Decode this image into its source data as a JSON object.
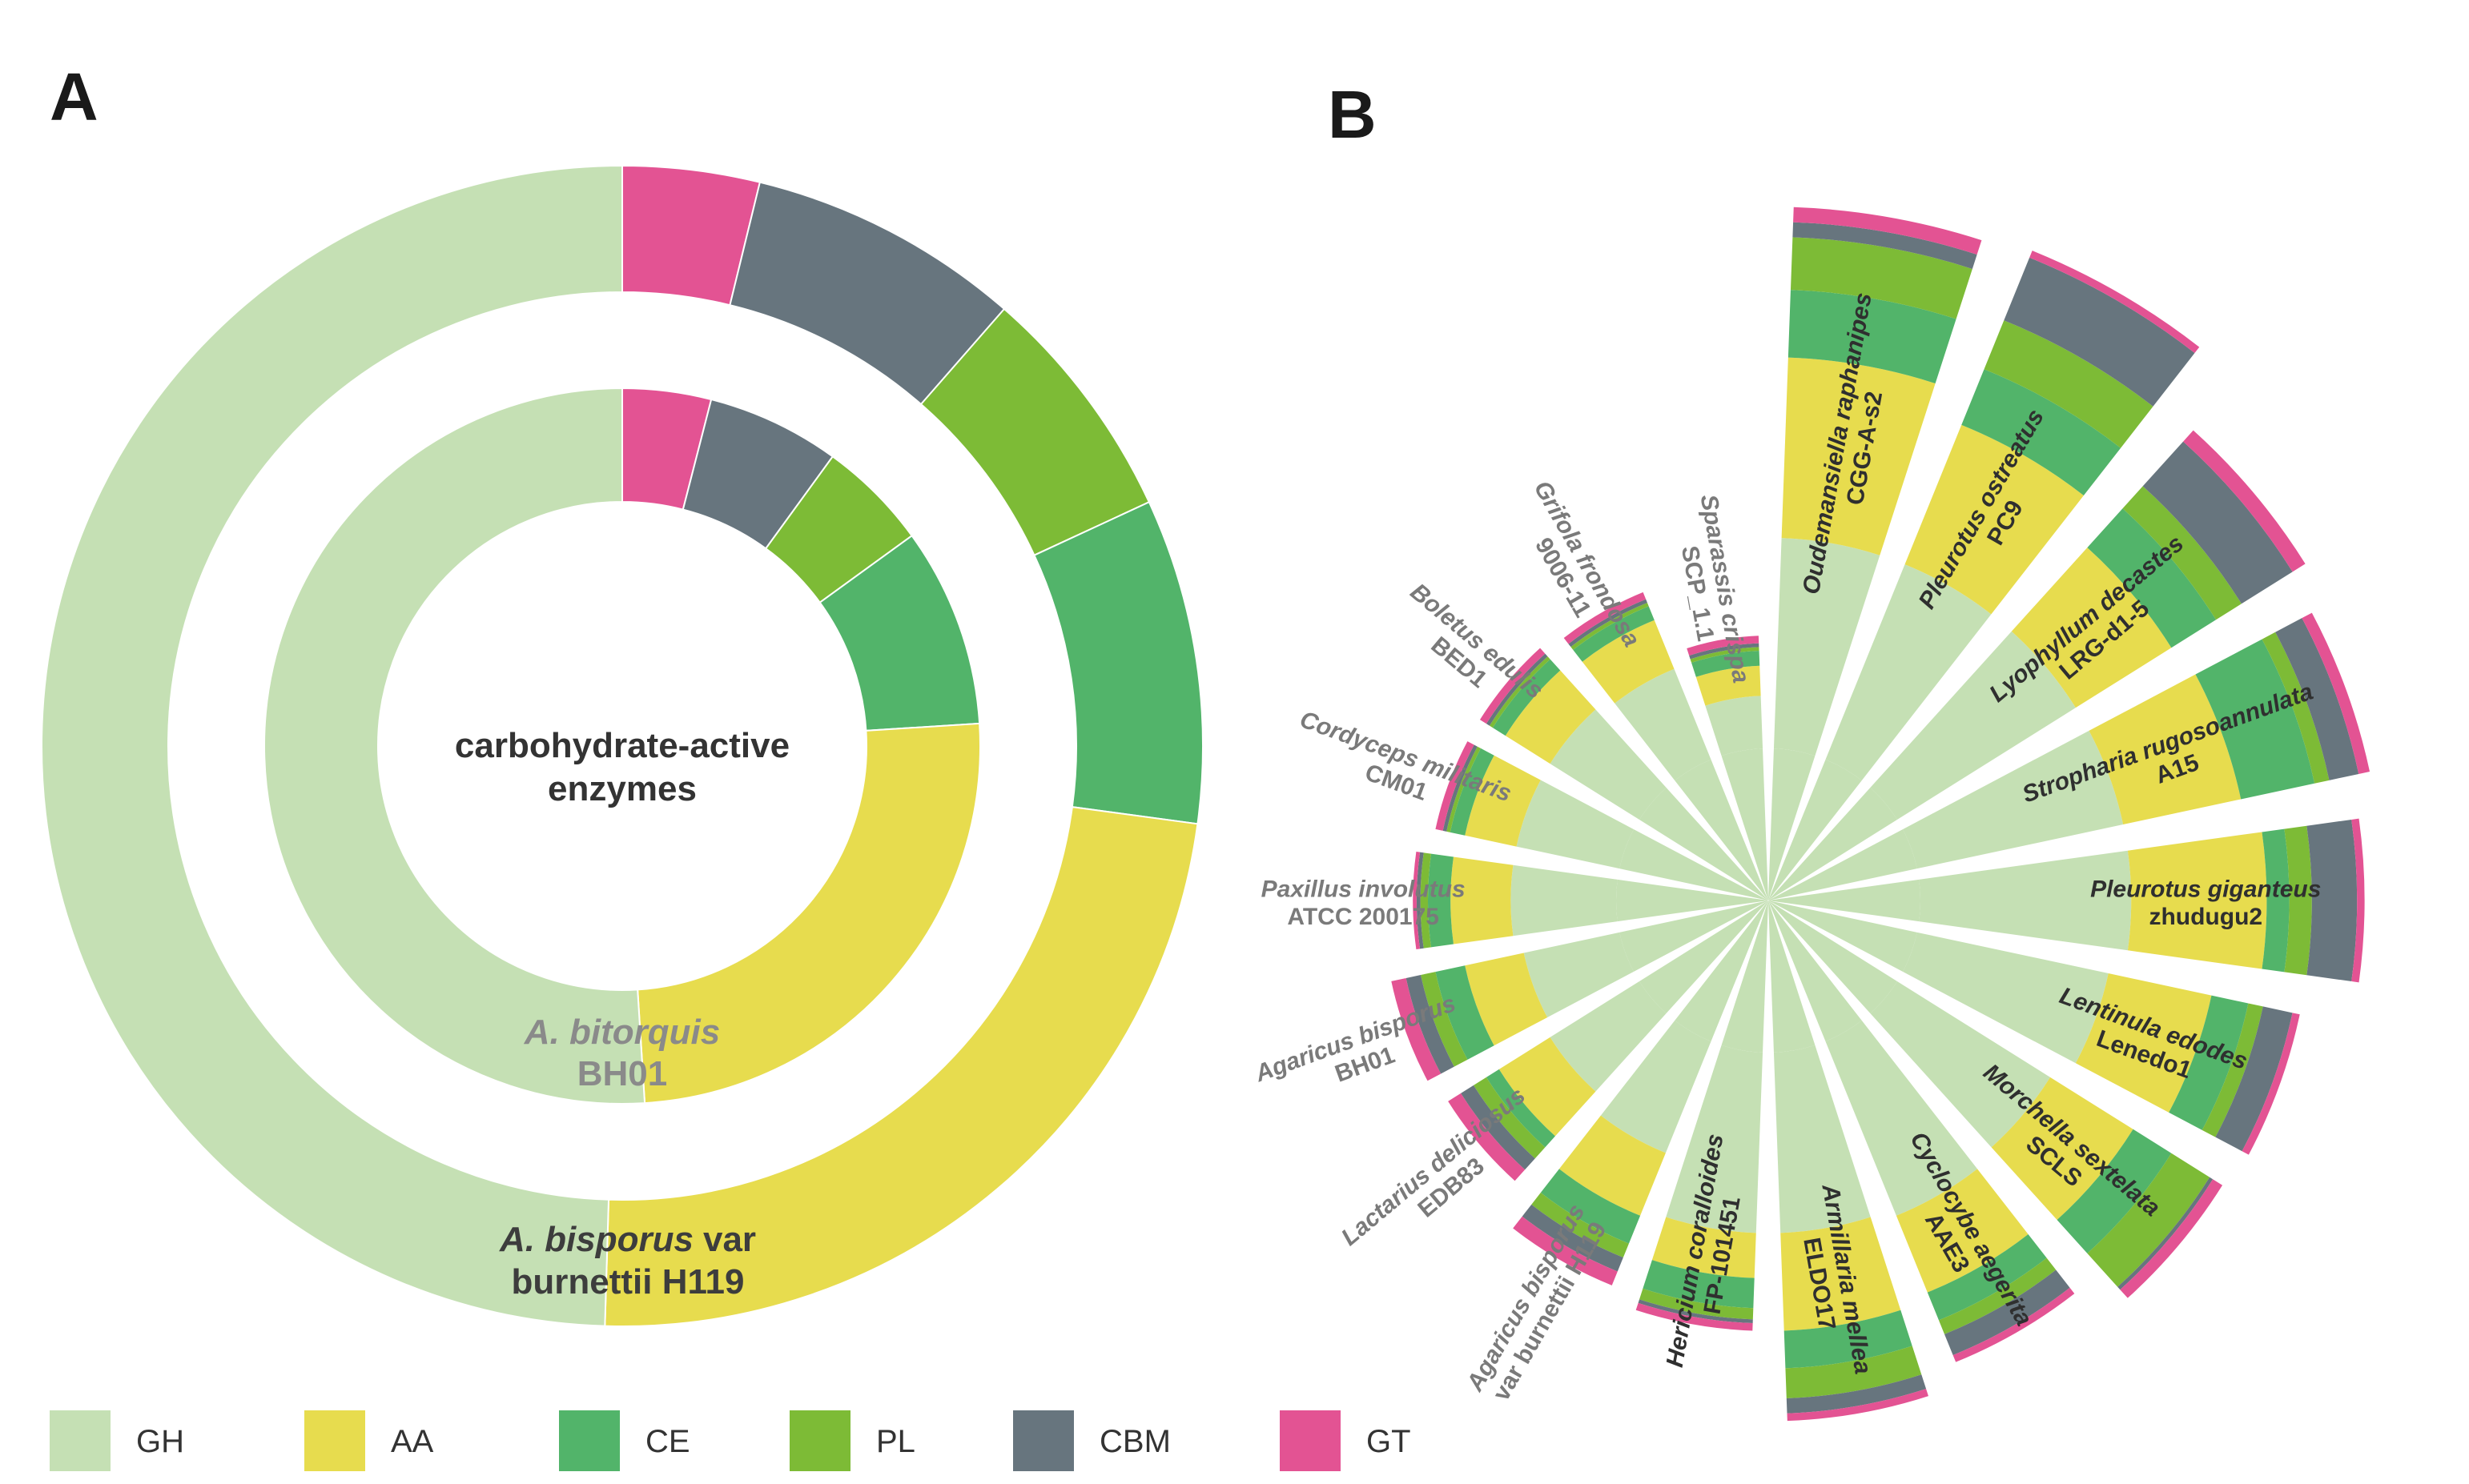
{
  "panels": {
    "a": "A",
    "b": "B"
  },
  "colors": {
    "GH": "#c5e0b4",
    "AA": "#e7dc4e",
    "CE": "#52b46a",
    "PL": "#7dbb36",
    "CBM": "#67757e",
    "GT": "#e35393"
  },
  "chart_data": [
    {
      "type": "pie",
      "variant": "double-ring donut",
      "title": "carbohydrate-active enzymes",
      "title_lines": [
        "carbohydrate-active",
        "enzymes"
      ],
      "categories": [
        "GH",
        "AA",
        "CE",
        "PL",
        "CBM",
        "GT"
      ],
      "series": [
        {
          "name": "A. bisporus var burnettii H119",
          "ring": "outer",
          "label": {
            "italic": "A.  bisporus",
            "plain": "var",
            "line2": "burnettii  H119"
          },
          "values": [
            52,
            24.5,
            9.5,
            7,
            8,
            4
          ]
        },
        {
          "name": "A. bitorquis BH01",
          "ring": "inner",
          "label": {
            "italic": "A.  bitorquis",
            "line2": "BH01"
          },
          "values": [
            51,
            25,
            9,
            5,
            6,
            4
          ]
        }
      ]
    },
    {
      "type": "bar",
      "variant": "polar stacked bar (radial)",
      "categories_order": [
        "GH",
        "AA",
        "CE",
        "PL",
        "CBM",
        "GT"
      ],
      "series": [
        {
          "name": "Oudemansiella raphanipes",
          "strain": "CGG-A-s2",
          "values": [
            28,
            24,
            9,
            7,
            2,
            2
          ]
        },
        {
          "name": "Pleurotus ostreatus",
          "strain": "PC9",
          "values": [
            28,
            20,
            8,
            7,
            9,
            1
          ]
        },
        {
          "name": "Lyophyllum decastes",
          "strain": "LRG-d1-5",
          "values": [
            28,
            15,
            7,
            4,
            8,
            2
          ]
        },
        {
          "name": "Stropharia rugosoannulata",
          "strain": "A15",
          "values": [
            28,
            16,
            10,
            2,
            4,
            1.5
          ]
        },
        {
          "name": "Pleurotus giganteus",
          "strain": "zhudugu2",
          "values": [
            28,
            18,
            3,
            3,
            6,
            1
          ]
        },
        {
          "name": "Lentinula edodes",
          "strain": "Lenedo1",
          "values": [
            26,
            14,
            5,
            2,
            4,
            1
          ]
        },
        {
          "name": "Morchella sextelata",
          "strain": "SCLS",
          "values": [
            24,
            13,
            6,
            6,
            0.5,
            1.5
          ]
        },
        {
          "name": "Cyclocybe aegerita",
          "strain": "AAE3",
          "values": [
            25,
            11,
            4,
            2,
            3,
            1
          ]
        },
        {
          "name": "Armillaria mellea",
          "strain": "ELDO17",
          "values": [
            24,
            13,
            5,
            4,
            2,
            1
          ]
        },
        {
          "name": "Hericium coralloides",
          "strain": "FP-101451",
          "values": [
            24,
            6,
            4,
            1.5,
            0.5,
            1
          ]
        },
        {
          "name": "Agaricus bisporus",
          "strain": "var burnettii H119",
          "values": [
            16,
            9,
            4,
            2,
            2,
            2
          ]
        },
        {
          "name": "Lactarius deliciosus",
          "strain": "EDB83",
          "values": [
            14,
            8,
            2,
            2,
            2,
            2
          ]
        },
        {
          "name": "Agaricus bisporus",
          "strain": "BH01",
          "values": [
            13,
            8,
            4,
            2,
            2,
            2
          ]
        },
        {
          "name": "Paxillus involutus",
          "strain": "ATCC 200175",
          "values": [
            14,
            8,
            3,
            1,
            0.5,
            0.5
          ]
        },
        {
          "name": "Cordyceps militaris",
          "strain": "CM01",
          "values": [
            14,
            7,
            2,
            0.5,
            0.5,
            1
          ]
        },
        {
          "name": "Boletus edulis",
          "strain": "BED1",
          "values": [
            14,
            7,
            2,
            0.5,
            0.5,
            1
          ]
        },
        {
          "name": "Grifola frondosa",
          "strain": "9006-11",
          "values": [
            13,
            7,
            2,
            0.5,
            0.5,
            1
          ]
        },
        {
          "name": "Sparassis crispa",
          "strain": "SCP_1.1",
          "values": [
            7,
            4,
            2,
            0.5,
            0.5,
            1
          ]
        }
      ]
    }
  ],
  "legend": [
    {
      "key": "GH",
      "label": "GH"
    },
    {
      "key": "AA",
      "label": "AA"
    },
    {
      "key": "CE",
      "label": "CE"
    },
    {
      "key": "PL",
      "label": "PL"
    },
    {
      "key": "CBM",
      "label": "CBM"
    },
    {
      "key": "GT",
      "label": "GT"
    }
  ]
}
